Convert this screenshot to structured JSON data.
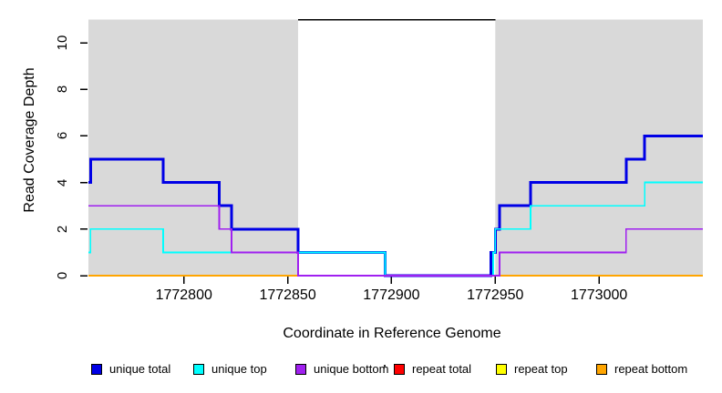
{
  "figure": {
    "xlabel": "Coordinate in Reference Genome",
    "ylabel": "Read Coverage Depth"
  },
  "legend": {
    "items": [
      {
        "label": "unique total",
        "color": "#0000E6"
      },
      {
        "label": "unique top",
        "color": "#00FFFF"
      },
      {
        "label": "unique bottom",
        "color": "#A020F0"
      },
      {
        "label": "repeat total",
        "color": "#FF0000"
      },
      {
        "label": "repeat top",
        "color": "#FFFF00"
      },
      {
        "label": "repeat bottom",
        "color": "#FFA500"
      }
    ]
  },
  "chart_data": {
    "type": "line",
    "subtype": "step-coverage",
    "title": "",
    "xlabel": "Coordinate in Reference Genome",
    "ylabel": "Read Coverage Depth",
    "xlim": [
      1772754,
      1773050
    ],
    "ylim": [
      0,
      11
    ],
    "x_ticks": [
      1772800,
      1772850,
      1772900,
      1772950,
      1773000
    ],
    "x_tick_labels": [
      "1772800",
      "1772850",
      "1772900",
      "1772950",
      "1773000"
    ],
    "y_ticks": [
      0,
      2,
      4,
      6,
      8,
      10
    ],
    "y_tick_labels": [
      "0",
      "2",
      "4",
      "6",
      "8",
      "10"
    ],
    "grid": false,
    "legend_position": "bottom",
    "panel_background": "#FFFFFF",
    "shaded_regions": [
      {
        "x0": 1772754,
        "x1": 1772855,
        "color": "#D9D9D9"
      },
      {
        "x0": 1772950,
        "x1": 1773050,
        "color": "#D9D9D9"
      }
    ],
    "annotation_line": {
      "x0": 1772855,
      "x1": 1772950,
      "y": 11,
      "color": "#000000"
    },
    "series": [
      {
        "name": "repeat total",
        "color": "#FF0000",
        "width": 1.5,
        "steps": [
          [
            1772754,
            0
          ]
        ]
      },
      {
        "name": "repeat top",
        "color": "#FFFF00",
        "width": 1.5,
        "steps": [
          [
            1772754,
            0
          ]
        ]
      },
      {
        "name": "repeat bottom",
        "color": "#FFA500",
        "width": 2,
        "steps": [
          [
            1772754,
            0
          ]
        ]
      },
      {
        "name": "unique total",
        "color": "#0000E6",
        "width": 3,
        "steps": [
          [
            1772754,
            4
          ],
          [
            1772755,
            5
          ],
          [
            1772790,
            4
          ],
          [
            1772817,
            3
          ],
          [
            1772823,
            2
          ],
          [
            1772855,
            1
          ],
          [
            1772897,
            0
          ],
          [
            1772948,
            1
          ],
          [
            1772950,
            2
          ],
          [
            1772952,
            3
          ],
          [
            1772967,
            4
          ],
          [
            1773013,
            5
          ],
          [
            1773022,
            6
          ]
        ]
      },
      {
        "name": "unique top",
        "color": "#00FFFF",
        "width": 1.8,
        "steps": [
          [
            1772754,
            1
          ],
          [
            1772755,
            2
          ],
          [
            1772790,
            1
          ],
          [
            1772897,
            0
          ],
          [
            1772949,
            1
          ],
          [
            1772950,
            2
          ],
          [
            1772967,
            3
          ],
          [
            1773022,
            4
          ]
        ]
      },
      {
        "name": "unique bottom",
        "color": "#A020F0",
        "width": 1.8,
        "steps": [
          [
            1772754,
            3
          ],
          [
            1772817,
            2
          ],
          [
            1772823,
            1
          ],
          [
            1772855,
            0
          ],
          [
            1772952,
            1
          ],
          [
            1773013,
            2
          ]
        ]
      }
    ]
  }
}
